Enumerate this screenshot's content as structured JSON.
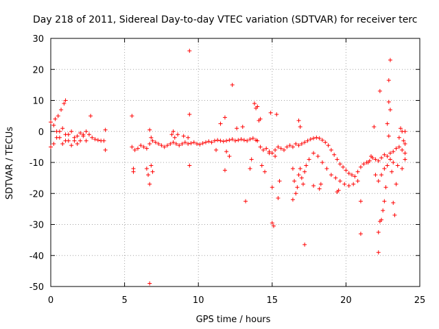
{
  "chart_data": {
    "type": "scatter",
    "title": "Day 218 of 2011, Sidereal Day-to-day VTEC variation (SDTVAR) for receiver terc",
    "xlabel": "GPS time / hours",
    "ylabel": "SDTVAR / TECUs",
    "xlim": [
      0,
      25
    ],
    "ylim": [
      -50,
      30
    ],
    "xticks": [
      0,
      5,
      10,
      15,
      20,
      25
    ],
    "yticks": [
      -50,
      -40,
      -30,
      -20,
      -10,
      0,
      10,
      20,
      30
    ],
    "xtick_labels": [
      "0",
      "5",
      "10",
      "15",
      "20",
      "25"
    ],
    "ytick_labels": [
      "-50",
      "-40",
      "-30",
      "-20",
      "-10",
      "0",
      "10",
      "20",
      "30"
    ],
    "grid": true,
    "marker": "+",
    "marker_color": "#ff0000",
    "series": [
      {
        "name": "SDTVAR",
        "points": [
          [
            0.0,
            3
          ],
          [
            0.2,
            2
          ],
          [
            0.4,
            0
          ],
          [
            0.6,
            -2
          ],
          [
            0.8,
            -4
          ],
          [
            1.0,
            -3
          ],
          [
            1.2,
            -1
          ],
          [
            1.4,
            0
          ],
          [
            1.6,
            -2
          ],
          [
            1.8,
            -4
          ],
          [
            2.0,
            -3
          ],
          [
            2.2,
            -1
          ],
          [
            2.4,
            0
          ],
          [
            2.6,
            -1
          ],
          [
            2.8,
            -2
          ],
          [
            3.0,
            -2.5
          ],
          [
            3.2,
            -2.8
          ],
          [
            3.4,
            -3
          ],
          [
            3.6,
            -3
          ],
          [
            0.0,
            -5
          ],
          [
            0.2,
            -4
          ],
          [
            0.4,
            -2
          ],
          [
            0.6,
            0
          ],
          [
            0.8,
            1
          ],
          [
            1.0,
            -1
          ],
          [
            1.2,
            -3
          ],
          [
            1.4,
            -4.5
          ],
          [
            1.6,
            -3
          ],
          [
            1.8,
            -1.5
          ],
          [
            2.0,
            -0.5
          ],
          [
            2.2,
            -1.5
          ],
          [
            2.4,
            -3
          ],
          [
            0.5,
            5
          ],
          [
            0.7,
            7
          ],
          [
            0.9,
            9
          ],
          [
            1.0,
            10
          ],
          [
            0.3,
            4
          ],
          [
            2.7,
            5
          ],
          [
            3.7,
            0.5
          ],
          [
            3.7,
            -6
          ],
          [
            5.5,
            -5
          ],
          [
            5.7,
            -6
          ],
          [
            5.9,
            -5.5
          ],
          [
            6.1,
            -4.5
          ],
          [
            6.3,
            -5
          ],
          [
            6.5,
            -5.5
          ],
          [
            6.7,
            -4
          ],
          [
            6.9,
            -3
          ],
          [
            7.1,
            -3.5
          ],
          [
            7.3,
            -4
          ],
          [
            7.5,
            -4.5
          ],
          [
            7.7,
            -5
          ],
          [
            7.9,
            -4.5
          ],
          [
            8.1,
            -4
          ],
          [
            8.3,
            -3.5
          ],
          [
            8.5,
            -4
          ],
          [
            8.7,
            -4.5
          ],
          [
            8.9,
            -4
          ],
          [
            9.1,
            -3.5
          ],
          [
            9.3,
            -4
          ],
          [
            9.5,
            -3.8
          ],
          [
            9.7,
            -3.5
          ],
          [
            9.9,
            -4
          ],
          [
            10.1,
            -4.2
          ],
          [
            10.3,
            -3.8
          ],
          [
            10.5,
            -3.5
          ],
          [
            10.7,
            -3.2
          ],
          [
            10.9,
            -3.5
          ],
          [
            11.1,
            -3
          ],
          [
            11.3,
            -2.8
          ],
          [
            11.5,
            -3
          ],
          [
            11.7,
            -3.2
          ],
          [
            11.9,
            -3
          ],
          [
            12.1,
            -2.8
          ],
          [
            12.3,
            -2.5
          ],
          [
            12.5,
            -3
          ],
          [
            12.7,
            -2.8
          ],
          [
            12.9,
            -2.5
          ],
          [
            13.1,
            -2.8
          ],
          [
            13.3,
            -3
          ],
          [
            13.5,
            -2.5
          ],
          [
            13.7,
            -2.2
          ],
          [
            13.9,
            -2.8
          ],
          [
            5.5,
            5
          ],
          [
            5.6,
            -12
          ],
          [
            5.6,
            -13
          ],
          [
            6.5,
            -12
          ],
          [
            6.6,
            -14
          ],
          [
            6.7,
            -17
          ],
          [
            6.7,
            -49
          ],
          [
            6.8,
            -11
          ],
          [
            6.9,
            -13
          ],
          [
            6.7,
            0.5
          ],
          [
            6.8,
            -2
          ],
          [
            8.2,
            -1
          ],
          [
            8.3,
            0
          ],
          [
            8.4,
            -2
          ],
          [
            8.6,
            -1
          ],
          [
            9.0,
            -1.5
          ],
          [
            9.3,
            -2
          ],
          [
            9.4,
            26
          ],
          [
            9.4,
            5.5
          ],
          [
            9.4,
            -11
          ],
          [
            11.2,
            -6
          ],
          [
            11.5,
            2.5
          ],
          [
            11.8,
            4.5
          ],
          [
            11.8,
            -12.5
          ],
          [
            11.9,
            -6.5
          ],
          [
            12.1,
            -8
          ],
          [
            12.3,
            15
          ],
          [
            12.6,
            1
          ],
          [
            13.0,
            1.5
          ],
          [
            13.2,
            -22.5
          ],
          [
            13.5,
            -12
          ],
          [
            13.6,
            -9
          ],
          [
            13.8,
            9
          ],
          [
            13.9,
            7.5
          ],
          [
            14.0,
            8
          ],
          [
            14.1,
            3.5
          ],
          [
            14.2,
            4
          ],
          [
            14.3,
            -11
          ],
          [
            14.5,
            -13
          ],
          [
            14.8,
            -7
          ],
          [
            14.9,
            6
          ],
          [
            15.0,
            -18
          ],
          [
            15.0,
            -29.5
          ],
          [
            15.1,
            -30.5
          ],
          [
            15.2,
            -8
          ],
          [
            15.3,
            5.5
          ],
          [
            15.4,
            -21.5
          ],
          [
            15.5,
            -16
          ],
          [
            14.0,
            -3
          ],
          [
            14.2,
            -5
          ],
          [
            14.4,
            -6
          ],
          [
            14.6,
            -5.5
          ],
          [
            14.8,
            -6.5
          ],
          [
            15.0,
            -7
          ],
          [
            15.2,
            -6
          ],
          [
            15.4,
            -5
          ],
          [
            15.6,
            -5.5
          ],
          [
            15.8,
            -6
          ],
          [
            16.0,
            -5
          ],
          [
            16.2,
            -4.5
          ],
          [
            16.4,
            -5
          ],
          [
            16.6,
            -4
          ],
          [
            16.8,
            -4.5
          ],
          [
            17.0,
            -4
          ],
          [
            17.2,
            -3.5
          ],
          [
            17.4,
            -3
          ],
          [
            17.6,
            -2.5
          ],
          [
            17.8,
            -2.2
          ],
          [
            18.0,
            -2
          ],
          [
            18.2,
            -2.2
          ],
          [
            18.4,
            -2.8
          ],
          [
            18.6,
            -3.5
          ],
          [
            18.8,
            -4.5
          ],
          [
            19.0,
            -6
          ],
          [
            19.2,
            -7.5
          ],
          [
            19.4,
            -9
          ],
          [
            19.6,
            -10.5
          ],
          [
            19.8,
            -11.5
          ],
          [
            20.0,
            -12.5
          ],
          [
            20.2,
            -13.5
          ],
          [
            20.4,
            -14
          ],
          [
            20.6,
            -14.5
          ],
          [
            20.8,
            -13
          ],
          [
            21.0,
            -11.5
          ],
          [
            21.2,
            -10.5
          ],
          [
            21.4,
            -10
          ],
          [
            21.6,
            -9.5
          ],
          [
            21.8,
            -8.5
          ],
          [
            22.0,
            -9
          ],
          [
            22.2,
            -9.5
          ],
          [
            22.4,
            -8.5
          ],
          [
            22.6,
            -7.5
          ],
          [
            22.8,
            -8
          ],
          [
            23.0,
            -7
          ],
          [
            23.2,
            -6.5
          ],
          [
            23.4,
            -5.5
          ],
          [
            23.6,
            -5
          ],
          [
            23.8,
            -6
          ],
          [
            24.0,
            -7
          ],
          [
            16.4,
            -12
          ],
          [
            16.5,
            -16
          ],
          [
            16.6,
            -20
          ],
          [
            16.7,
            -18
          ],
          [
            16.8,
            -14
          ],
          [
            16.9,
            -12
          ],
          [
            17.0,
            -15
          ],
          [
            17.1,
            -17
          ],
          [
            17.2,
            -13
          ],
          [
            17.3,
            -11
          ],
          [
            17.5,
            -9
          ],
          [
            17.8,
            -7
          ],
          [
            18.1,
            -8
          ],
          [
            18.4,
            -10
          ],
          [
            18.7,
            -12
          ],
          [
            19.0,
            -14
          ],
          [
            19.3,
            -15
          ],
          [
            19.6,
            -16
          ],
          [
            19.9,
            -17
          ],
          [
            20.2,
            -17.5
          ],
          [
            20.5,
            -17
          ],
          [
            20.8,
            -16
          ],
          [
            16.4,
            -22
          ],
          [
            16.8,
            3.5
          ],
          [
            16.9,
            1.5
          ],
          [
            17.2,
            -36.5
          ],
          [
            17.8,
            -17.5
          ],
          [
            18.2,
            -18.5
          ],
          [
            18.3,
            -17
          ],
          [
            19.4,
            -19.5
          ],
          [
            19.5,
            -19
          ],
          [
            21.0,
            -22.5
          ],
          [
            21.0,
            -33
          ],
          [
            21.5,
            -10
          ],
          [
            21.7,
            -8
          ],
          [
            21.9,
            1.5
          ],
          [
            22.0,
            -14
          ],
          [
            22.2,
            -32.5
          ],
          [
            22.2,
            -39
          ],
          [
            22.3,
            -29
          ],
          [
            22.4,
            -28.5
          ],
          [
            22.3,
            13
          ],
          [
            22.5,
            -25.5
          ],
          [
            22.6,
            -22.5
          ],
          [
            22.7,
            -18
          ],
          [
            22.9,
            16.5
          ],
          [
            23.0,
            23
          ],
          [
            22.9,
            9.5
          ],
          [
            23.0,
            7
          ],
          [
            22.8,
            2.5
          ],
          [
            22.9,
            -1.5
          ],
          [
            23.1,
            -13
          ],
          [
            23.2,
            -23
          ],
          [
            23.3,
            -27
          ],
          [
            23.4,
            -17
          ],
          [
            23.6,
            -2
          ],
          [
            23.7,
            1
          ],
          [
            23.8,
            0
          ],
          [
            23.9,
            -3
          ],
          [
            24.0,
            0
          ],
          [
            24.0,
            -4
          ],
          [
            24.0,
            -9
          ],
          [
            23.8,
            -12
          ],
          [
            23.5,
            -11
          ],
          [
            23.2,
            -10
          ],
          [
            23.0,
            -9
          ],
          [
            22.8,
            -11
          ],
          [
            22.6,
            -12
          ],
          [
            22.4,
            -14
          ],
          [
            22.2,
            -16
          ]
        ]
      }
    ]
  }
}
